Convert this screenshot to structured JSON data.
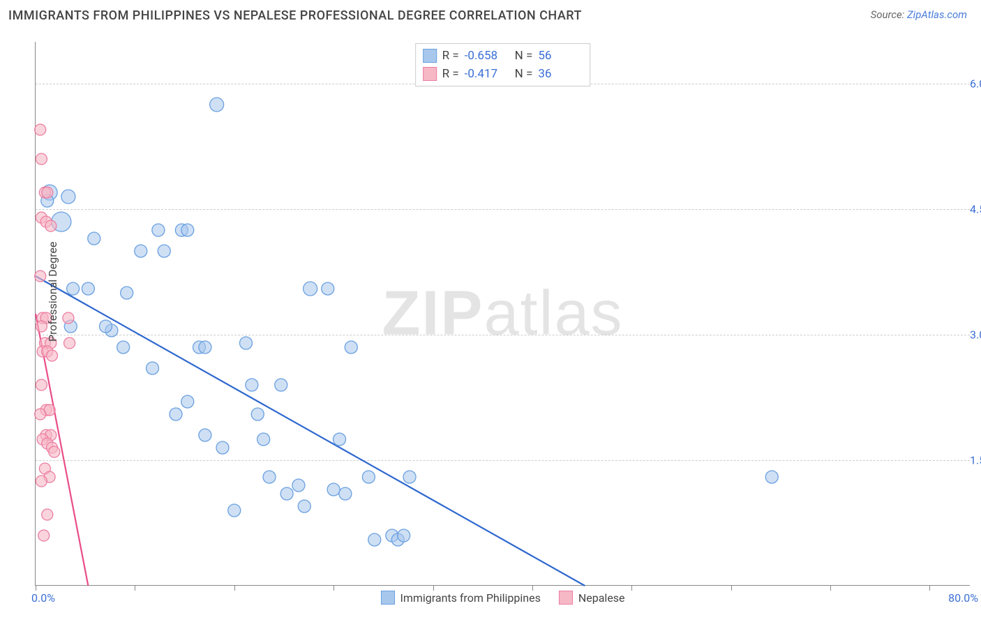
{
  "header": {
    "title": "IMMIGRANTS FROM PHILIPPINES VS NEPALESE PROFESSIONAL DEGREE CORRELATION CHART",
    "source_label": "Source:",
    "source_link": "ZipAtlas.com"
  },
  "watermark": {
    "left": "ZIP",
    "right": "atlas"
  },
  "chart": {
    "type": "scatter",
    "ylabel": "Professional Degree",
    "xlim": [
      0,
      80
    ],
    "ylim": [
      0,
      6.5
    ],
    "xtick_positions": [
      0,
      8.5,
      17,
      25.5,
      34,
      42.5,
      51,
      59.5,
      68,
      76.5
    ],
    "xstart_label": "0.0%",
    "xend_label": "80.0%",
    "ytick_labels": [
      {
        "y": 1.5,
        "label": "1.5%"
      },
      {
        "y": 3.0,
        "label": "3.0%"
      },
      {
        "y": 4.5,
        "label": "4.5%"
      },
      {
        "y": 6.0,
        "label": "6.0%"
      }
    ],
    "grid_color": "#cccccc",
    "axis_color": "#888888",
    "background_color": "#ffffff",
    "series": [
      {
        "name": "Immigrants from Philippines",
        "fill": "#a8c7ec",
        "fill_opacity": 0.55,
        "stroke": "#6aa0e0",
        "stroke_width": 1.3,
        "line_color": "#2f68cf",
        "line_width": 2.2,
        "marker_radius": 9,
        "R": "-0.658",
        "N": "56",
        "regression": {
          "x1": 0,
          "y1": 3.7,
          "x2": 47,
          "y2": 0
        },
        "points": [
          {
            "x": 1.2,
            "y": 4.7,
            "r": 11
          },
          {
            "x": 2.2,
            "y": 4.35,
            "r": 14
          },
          {
            "x": 1.0,
            "y": 4.6,
            "r": 9
          },
          {
            "x": 2.8,
            "y": 4.65,
            "r": 10
          },
          {
            "x": 3.2,
            "y": 3.55,
            "r": 9
          },
          {
            "x": 4.5,
            "y": 3.55,
            "r": 9
          },
          {
            "x": 3.0,
            "y": 3.1,
            "r": 9
          },
          {
            "x": 5.0,
            "y": 4.15,
            "r": 9
          },
          {
            "x": 6.5,
            "y": 3.05,
            "r": 9
          },
          {
            "x": 6.0,
            "y": 3.1,
            "r": 9
          },
          {
            "x": 7.5,
            "y": 2.85,
            "r": 9
          },
          {
            "x": 7.8,
            "y": 3.5,
            "r": 9
          },
          {
            "x": 9.0,
            "y": 4.0,
            "r": 9
          },
          {
            "x": 11.0,
            "y": 4.0,
            "r": 9
          },
          {
            "x": 10.5,
            "y": 4.25,
            "r": 9
          },
          {
            "x": 12.5,
            "y": 4.25,
            "r": 9
          },
          {
            "x": 13.0,
            "y": 4.25,
            "r": 9
          },
          {
            "x": 15.5,
            "y": 5.75,
            "r": 10
          },
          {
            "x": 10.0,
            "y": 2.6,
            "r": 9
          },
          {
            "x": 12.0,
            "y": 2.05,
            "r": 9
          },
          {
            "x": 13.0,
            "y": 2.2,
            "r": 9
          },
          {
            "x": 14.0,
            "y": 2.85,
            "r": 9
          },
          {
            "x": 14.5,
            "y": 2.85,
            "r": 9
          },
          {
            "x": 16.0,
            "y": 1.65,
            "r": 9
          },
          {
            "x": 17.0,
            "y": 0.9,
            "r": 9
          },
          {
            "x": 14.5,
            "y": 1.8,
            "r": 9
          },
          {
            "x": 18.0,
            "y": 2.9,
            "r": 9
          },
          {
            "x": 18.5,
            "y": 2.4,
            "r": 9
          },
          {
            "x": 19.0,
            "y": 2.05,
            "r": 9
          },
          {
            "x": 19.5,
            "y": 1.75,
            "r": 9
          },
          {
            "x": 20.0,
            "y": 1.3,
            "r": 9
          },
          {
            "x": 21.0,
            "y": 2.4,
            "r": 9
          },
          {
            "x": 21.5,
            "y": 1.1,
            "r": 9
          },
          {
            "x": 22.5,
            "y": 1.2,
            "r": 9
          },
          {
            "x": 23.0,
            "y": 0.95,
            "r": 9
          },
          {
            "x": 23.5,
            "y": 3.55,
            "r": 10
          },
          {
            "x": 25.0,
            "y": 3.55,
            "r": 9
          },
          {
            "x": 25.5,
            "y": 1.15,
            "r": 9
          },
          {
            "x": 26.0,
            "y": 1.75,
            "r": 9
          },
          {
            "x": 26.5,
            "y": 1.1,
            "r": 9
          },
          {
            "x": 27.0,
            "y": 2.85,
            "r": 9
          },
          {
            "x": 28.5,
            "y": 1.3,
            "r": 9
          },
          {
            "x": 29.0,
            "y": 0.55,
            "r": 9
          },
          {
            "x": 30.5,
            "y": 0.6,
            "r": 9
          },
          {
            "x": 31.0,
            "y": 0.55,
            "r": 9
          },
          {
            "x": 31.5,
            "y": 0.6,
            "r": 9
          },
          {
            "x": 32.0,
            "y": 1.3,
            "r": 9
          },
          {
            "x": 63.0,
            "y": 1.3,
            "r": 9
          }
        ]
      },
      {
        "name": "Nepalese",
        "fill": "#f6b8c5",
        "fill_opacity": 0.6,
        "stroke": "#ec7da1",
        "stroke_width": 1.3,
        "line_color": "#e94d87",
        "line_width": 2.2,
        "marker_radius": 8,
        "R": "-0.417",
        "N": "36",
        "regression": {
          "x1": 0,
          "y1": 3.25,
          "x2": 4.5,
          "y2": 0
        },
        "points": [
          {
            "x": 0.4,
            "y": 5.45
          },
          {
            "x": 0.5,
            "y": 5.1
          },
          {
            "x": 0.8,
            "y": 4.7
          },
          {
            "x": 1.0,
            "y": 4.7
          },
          {
            "x": 0.5,
            "y": 4.4
          },
          {
            "x": 0.9,
            "y": 4.35
          },
          {
            "x": 1.3,
            "y": 4.3
          },
          {
            "x": 0.4,
            "y": 3.7
          },
          {
            "x": 0.6,
            "y": 3.2
          },
          {
            "x": 0.9,
            "y": 3.2
          },
          {
            "x": 0.5,
            "y": 3.1
          },
          {
            "x": 0.8,
            "y": 2.9
          },
          {
            "x": 1.3,
            "y": 2.9
          },
          {
            "x": 0.6,
            "y": 2.8
          },
          {
            "x": 1.0,
            "y": 2.8
          },
          {
            "x": 1.4,
            "y": 2.75
          },
          {
            "x": 0.5,
            "y": 2.4
          },
          {
            "x": 0.9,
            "y": 2.1
          },
          {
            "x": 1.2,
            "y": 2.1
          },
          {
            "x": 0.4,
            "y": 2.05
          },
          {
            "x": 0.9,
            "y": 1.8
          },
          {
            "x": 1.3,
            "y": 1.8
          },
          {
            "x": 0.6,
            "y": 1.75
          },
          {
            "x": 1.0,
            "y": 1.7
          },
          {
            "x": 1.4,
            "y": 1.65
          },
          {
            "x": 1.6,
            "y": 1.6
          },
          {
            "x": 0.8,
            "y": 1.4
          },
          {
            "x": 1.2,
            "y": 1.3
          },
          {
            "x": 0.5,
            "y": 1.25
          },
          {
            "x": 1.0,
            "y": 0.85
          },
          {
            "x": 0.7,
            "y": 0.6
          },
          {
            "x": 2.8,
            "y": 3.2
          },
          {
            "x": 2.9,
            "y": 2.9
          }
        ]
      }
    ]
  },
  "legend_bottom": [
    {
      "label": "Immigrants from Philippines",
      "fill": "#a8c7ec",
      "stroke": "#6aa0e0"
    },
    {
      "label": "Nepalese",
      "fill": "#f6b8c5",
      "stroke": "#ec7da1"
    }
  ]
}
